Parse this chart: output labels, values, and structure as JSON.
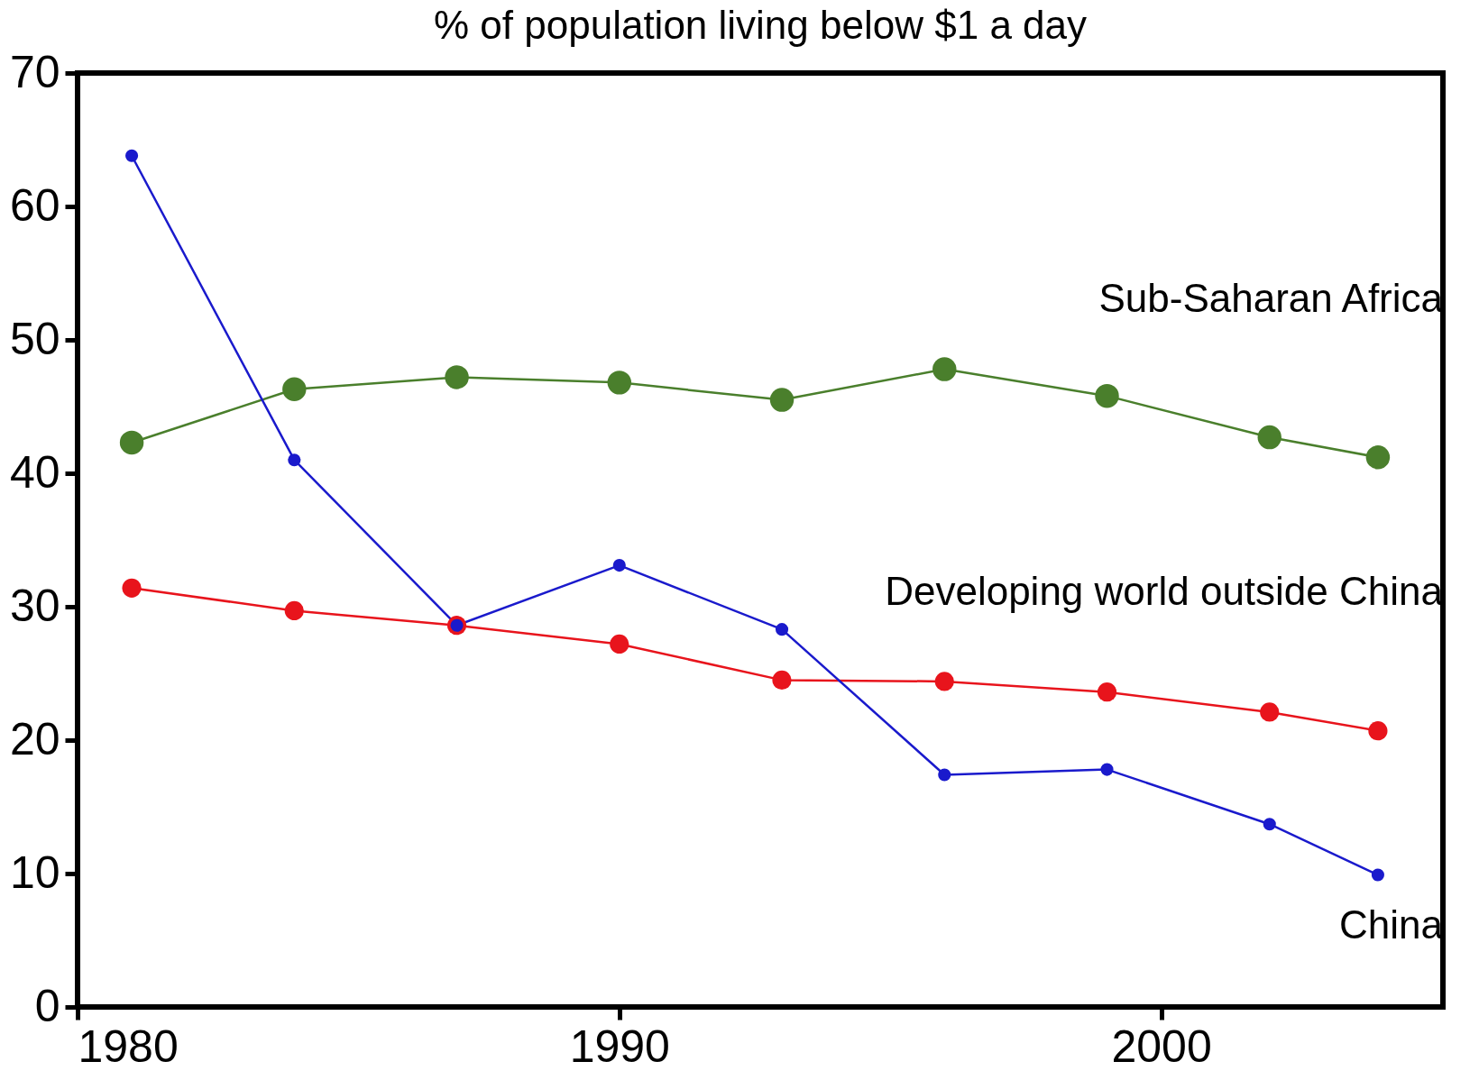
{
  "chart_data": {
    "type": "line",
    "title": "% of population living below $1 a day",
    "x": [
      1981,
      1984,
      1987,
      1990,
      1993,
      1996,
      1999,
      2002,
      2004
    ],
    "series": [
      {
        "name": "Sub-Saharan Africa",
        "color": "#4a7f2c",
        "values": [
          42.3,
          46.3,
          47.2,
          46.8,
          45.5,
          47.8,
          45.8,
          42.7,
          41.2
        ]
      },
      {
        "name": "Developing world outside China",
        "color": "#e8141c",
        "values": [
          31.4,
          29.7,
          28.6,
          27.2,
          24.5,
          24.4,
          23.6,
          22.1,
          20.7
        ]
      },
      {
        "name": "China",
        "color": "#1a1acc",
        "values": [
          63.8,
          41.0,
          28.6,
          33.1,
          28.3,
          17.4,
          17.8,
          13.7,
          9.9
        ]
      }
    ],
    "xlim": [
      1980,
      2005.2
    ],
    "ylim": [
      0,
      70
    ],
    "xticks": [
      1980,
      1990,
      2000
    ],
    "yticks": [
      0,
      10,
      20,
      30,
      40,
      50,
      60,
      70
    ],
    "grid": false,
    "legend": false,
    "marker": "circle",
    "line_style": "solid"
  }
}
